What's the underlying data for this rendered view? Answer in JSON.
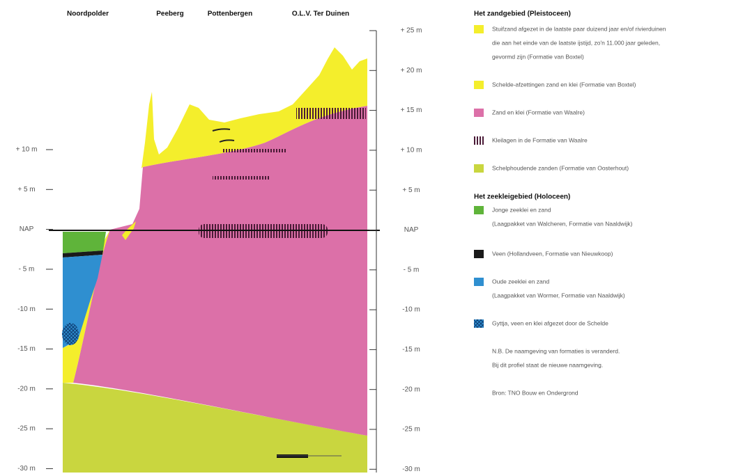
{
  "locations": [
    "Noordpolder",
    "Peeberg",
    "Pottenbergen",
    "O.L.V. Ter Duinen"
  ],
  "left_axis": [
    "+ 10 m",
    "+ 5 m",
    "NAP",
    "- 5 m",
    "-10 m",
    "-15 m",
    "-20 m",
    "-25 m",
    "-30 m"
  ],
  "right_axis": [
    "+ 25 m",
    "+ 20 m",
    "+ 15 m",
    "+ 10 m",
    "+ 5 m",
    "NAP",
    "- 5 m",
    "-10 m",
    "-15 m",
    "-20 m",
    "-25 m",
    "-30 m"
  ],
  "legend": {
    "pleistocene": {
      "heading": "Het zandgebied (Pleistoceen)",
      "items": [
        {
          "lines": [
            "Stuifzand afgezet in de laatste paar duizend jaar en/of rivierduinen",
            "die aan het einde van de laatste ijstijd, zo'n 11.000 jaar geleden,",
            "gevormd zijn (Formatie van Boxtel)"
          ]
        },
        {
          "lines": [
            "Schelde-afzettingen zand en klei (Formatie van Boxtel)"
          ]
        },
        {
          "lines": [
            "Zand en klei (Formatie van Waalre)"
          ]
        },
        {
          "lines": [
            "Kleilagen in de Formatie van Waalre"
          ]
        },
        {
          "lines": [
            "Schelphoudende zanden (Formatie van Oosterhout)"
          ]
        }
      ]
    },
    "holocene": {
      "heading": "Het zeekleigebied (Holoceen)",
      "items": [
        {
          "lines": [
            "Jonge zeeklei en zand",
            "(Laagpakket van Walcheren, Formatie van Naaldwijk)"
          ]
        },
        {
          "lines": [
            "Veen (Hollandveen, Formatie van Nieuwkoop)"
          ]
        },
        {
          "lines": [
            "Oude zeeklei en zand",
            "(Laagpakket van Wormer, Formatie van Naaldwijk)"
          ]
        },
        {
          "lines": [
            "Gyttja, veen en klei afgezet door de Schelde"
          ]
        }
      ]
    },
    "notes": [
      "N.B. De naamgeving van formaties is veranderd.",
      "Bij dit profiel staat de nieuwe naamgeving."
    ],
    "source": "Bron: TNO Bouw en Ondergrond"
  }
}
